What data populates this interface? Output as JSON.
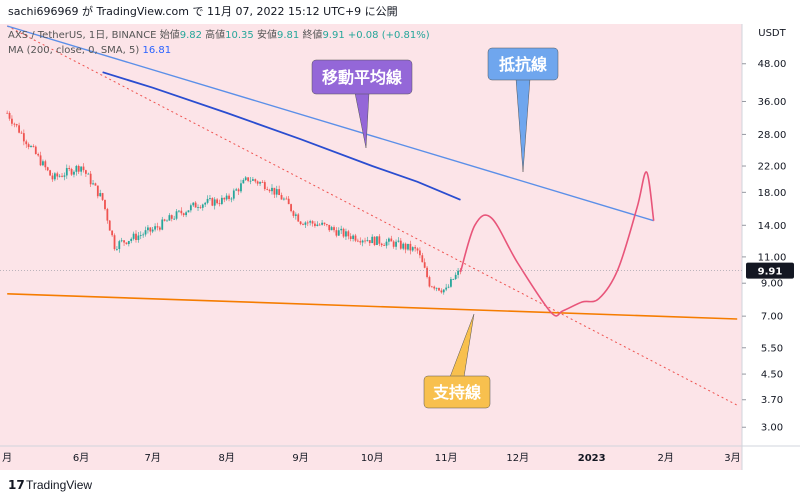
{
  "header": {
    "publish_text": "sachi696969 が TradingView.com で 11月 07, 2022 15:12 UTC+9 に公開"
  },
  "legend": {
    "symbol": "AXS / TetherUS, 1日, BINANCE",
    "open_label": "始値",
    "open": "9.82",
    "high_label": "高値",
    "high": "10.35",
    "low_label": "安値",
    "low": "9.81",
    "close_label": "終値",
    "close": "9.91",
    "change": "+0.08 (+0.81%)",
    "ma_label": "MA (200, close, 0, SMA, 5)",
    "ma_value": "16.81"
  },
  "annotations": {
    "ma": "移動平均線",
    "resistance": "抵抗線",
    "support": "支持線"
  },
  "price_axis": {
    "unit": "USDT",
    "ticks": [
      "48.00",
      "36.00",
      "28.00",
      "22.00",
      "18.00",
      "14.00",
      "11.00",
      "9.00",
      "7.00",
      "5.50",
      "4.50",
      "3.70",
      "3.00"
    ],
    "current_price": "9.91"
  },
  "time_axis": {
    "ticks": [
      "月",
      "6月",
      "7月",
      "8月",
      "9月",
      "10月",
      "11月",
      "12月",
      "2023",
      "2月",
      "3月"
    ]
  },
  "footer": {
    "brand": "TradingView",
    "logo": "17"
  },
  "colors": {
    "background": "#fce4e8",
    "up": "#26a69a",
    "down": "#ef5350",
    "ma_line": "#2a4dd0",
    "resistance": "#5b8fe8",
    "support": "#f57c00",
    "forecast": "#e8557a",
    "ma_box": "#9467d8",
    "resistance_box": "#6fa6ee",
    "support_box": "#f8c04e"
  },
  "chart_data": {
    "type": "candlestick",
    "y_scale": "log",
    "ylim": [
      2.6,
      65
    ],
    "x_range": [
      "2022-04-28",
      "2023-03-05"
    ],
    "price_series": {
      "dates": [
        "2022-05-01",
        "2022-05-10",
        "2022-05-20",
        "2022-06-01",
        "2022-06-10",
        "2022-06-15",
        "2022-06-20",
        "2022-07-01",
        "2022-07-10",
        "2022-07-20",
        "2022-08-01",
        "2022-08-10",
        "2022-08-18",
        "2022-08-25",
        "2022-09-01",
        "2022-09-10",
        "2022-09-20",
        "2022-10-01",
        "2022-10-10",
        "2022-10-20",
        "2022-10-25",
        "2022-11-01",
        "2022-11-04",
        "2022-11-07"
      ],
      "close": [
        33,
        26,
        20,
        22,
        17,
        12,
        12.5,
        13.5,
        15,
        16.5,
        17,
        20,
        19,
        17,
        14.5,
        14,
        13,
        12.5,
        12.2,
        11.5,
        9,
        8.5,
        9.3,
        9.91
      ]
    },
    "ma200": {
      "name": "MA (200, close, 0, SMA, 5)",
      "dates": [
        "2022-06-10",
        "2022-07-01",
        "2022-08-01",
        "2022-09-01",
        "2022-10-01",
        "2022-10-20",
        "2022-11-07"
      ],
      "values": [
        45,
        40,
        33,
        27,
        22,
        19.5,
        17
      ]
    },
    "resistance_line": {
      "dates": [
        "2022-05-01",
        "2023-01-27"
      ],
      "values": [
        64,
        14.5
      ]
    },
    "support_line": {
      "dates": [
        "2022-05-01",
        "2023-03-03"
      ],
      "values": [
        8.3,
        6.85
      ]
    },
    "descending_dotted_line": {
      "dates": [
        "2022-05-01",
        "2023-03-03"
      ],
      "values": [
        64,
        3.55
      ]
    },
    "forecast_path": {
      "dates": [
        "2022-11-07",
        "2022-11-13",
        "2022-11-20",
        "2022-12-01",
        "2022-12-15",
        "2022-12-20",
        "2022-12-28",
        "2023-01-04",
        "2023-01-12",
        "2023-01-20",
        "2023-01-24",
        "2023-01-27"
      ],
      "values": [
        9.8,
        14,
        14.8,
        10.5,
        7.2,
        7.3,
        7.8,
        8.0,
        10,
        16,
        21,
        14.5
      ]
    }
  }
}
